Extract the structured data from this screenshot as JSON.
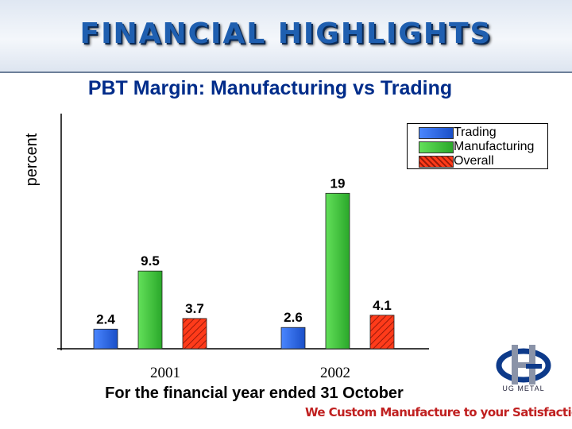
{
  "header": {
    "title": "FINANCIAL HIGHLIGHTS"
  },
  "chart_data": {
    "type": "bar",
    "title": "PBT Margin: Manufacturing vs Trading",
    "xlabel": "For the financial year ended 31 October",
    "ylabel": "percent",
    "categories": [
      "2001",
      "2002"
    ],
    "series": [
      {
        "name": "Trading",
        "values": [
          2.4,
          2.6
        ],
        "labels": [
          "2.4",
          "2.6"
        ],
        "color": "#1f5fdc",
        "pattern": "solid"
      },
      {
        "name": "Manufacturing",
        "values": [
          9.5,
          19
        ],
        "labels": [
          "9.5",
          "19"
        ],
        "color": "#3cc03c",
        "pattern": "solid"
      },
      {
        "name": "Overall",
        "values": [
          3.7,
          4.1
        ],
        "labels": [
          "3.7",
          "4.1"
        ],
        "color": "#ff3b1a",
        "pattern": "hatched"
      }
    ],
    "ylim": [
      0,
      22
    ],
    "grid": false,
    "legend_position": "top-right"
  },
  "logo": {
    "text": "UG METAL"
  },
  "slogan": "We Custom Manufacture to your Satisfaction"
}
